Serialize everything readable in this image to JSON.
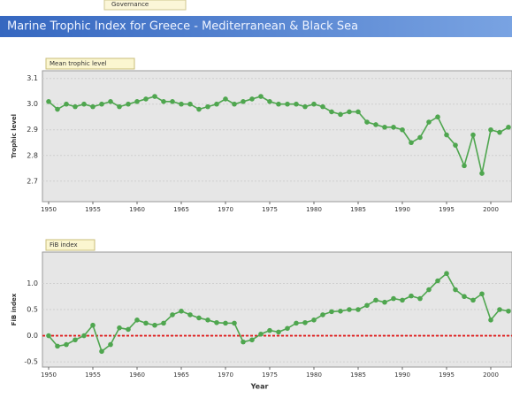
{
  "tab": "Governance",
  "header": "Marine Trophic Index for Greece - Mediterranean & Black Sea",
  "chart_data": [
    {
      "type": "line",
      "title": "Mean trophic level",
      "y_label": "Trophic level",
      "x": [
        1950,
        1951,
        1952,
        1953,
        1954,
        1955,
        1956,
        1957,
        1958,
        1959,
        1960,
        1961,
        1962,
        1963,
        1964,
        1965,
        1966,
        1967,
        1968,
        1969,
        1970,
        1971,
        1972,
        1973,
        1974,
        1975,
        1976,
        1977,
        1978,
        1979,
        1980,
        1981,
        1982,
        1983,
        1984,
        1985,
        1986,
        1987,
        1988,
        1989,
        1990,
        1991,
        1992,
        1993,
        1994,
        1995,
        1996,
        1997,
        1998,
        1999,
        2000,
        2001,
        2002
      ],
      "series": [
        {
          "name": "Mean trophic level",
          "color": "#4fa64f",
          "values": [
            3.01,
            2.98,
            3.0,
            2.99,
            3.0,
            2.99,
            3.0,
            3.01,
            2.99,
            3.0,
            3.01,
            3.02,
            3.03,
            3.01,
            3.01,
            3.0,
            3.0,
            2.98,
            2.99,
            3.0,
            3.02,
            3.0,
            3.01,
            3.02,
            3.03,
            3.01,
            3.0,
            3.0,
            3.0,
            2.99,
            3.0,
            2.99,
            2.97,
            2.96,
            2.97,
            2.97,
            2.93,
            2.92,
            2.91,
            2.91,
            2.9,
            2.85,
            2.87,
            2.93,
            2.95,
            2.88,
            2.84,
            2.76,
            2.88,
            2.73,
            2.9,
            2.89,
            2.91
          ]
        }
      ],
      "xlim": [
        1949.3,
        2002.4
      ],
      "xticks": [
        1950,
        1955,
        1960,
        1965,
        1970,
        1975,
        1980,
        1985,
        1990,
        1995,
        2000
      ],
      "ylim": [
        2.62,
        3.13
      ],
      "yticks": [
        {
          "value": 2.7,
          "label": "2.7"
        },
        {
          "value": 2.8,
          "label": "2.8"
        },
        {
          "value": 2.9,
          "label": "2.9"
        },
        {
          "value": 3,
          "label": "3.0"
        },
        {
          "value": 3.1,
          "label": "3.1"
        }
      ],
      "grid": true
    },
    {
      "type": "line",
      "title": "FiB index",
      "y_label": "FiB index",
      "x_label": "Year",
      "x": [
        1950,
        1951,
        1952,
        1953,
        1954,
        1955,
        1956,
        1957,
        1958,
        1959,
        1960,
        1961,
        1962,
        1963,
        1964,
        1965,
        1966,
        1967,
        1968,
        1969,
        1970,
        1971,
        1972,
        1973,
        1974,
        1975,
        1976,
        1977,
        1978,
        1979,
        1980,
        1981,
        1982,
        1983,
        1984,
        1985,
        1986,
        1987,
        1988,
        1989,
        1990,
        1991,
        1992,
        1993,
        1994,
        1995,
        1996,
        1997,
        1998,
        1999,
        2000,
        2001,
        2002
      ],
      "series": [
        {
          "name": "FiB index",
          "color": "#4fa64f",
          "values": [
            0.0,
            -0.2,
            -0.17,
            -0.08,
            0.0,
            0.2,
            -0.3,
            -0.17,
            0.15,
            0.12,
            0.3,
            0.24,
            0.2,
            0.24,
            0.4,
            0.47,
            0.4,
            0.34,
            0.3,
            0.25,
            0.24,
            0.24,
            -0.12,
            -0.08,
            0.03,
            0.1,
            0.07,
            0.14,
            0.24,
            0.25,
            0.3,
            0.4,
            0.46,
            0.47,
            0.5,
            0.5,
            0.58,
            0.68,
            0.64,
            0.71,
            0.68,
            0.76,
            0.71,
            0.88,
            1.05,
            1.19,
            0.88,
            0.75,
            0.68,
            0.8,
            0.3,
            0.5,
            0.47
          ]
        }
      ],
      "xlim": [
        1949.3,
        2002.4
      ],
      "xticks": [
        1950,
        1955,
        1960,
        1965,
        1970,
        1975,
        1980,
        1985,
        1990,
        1995,
        2000
      ],
      "ylim": [
        -0.6,
        1.6
      ],
      "yticks": [
        -0.5,
        {
          "value": 0,
          "label": "0.0"
        },
        0.5,
        {
          "value": 1,
          "label": "1.0"
        }
      ],
      "reference_line": {
        "value": 0,
        "color": "#e02020"
      },
      "grid": true
    }
  ]
}
